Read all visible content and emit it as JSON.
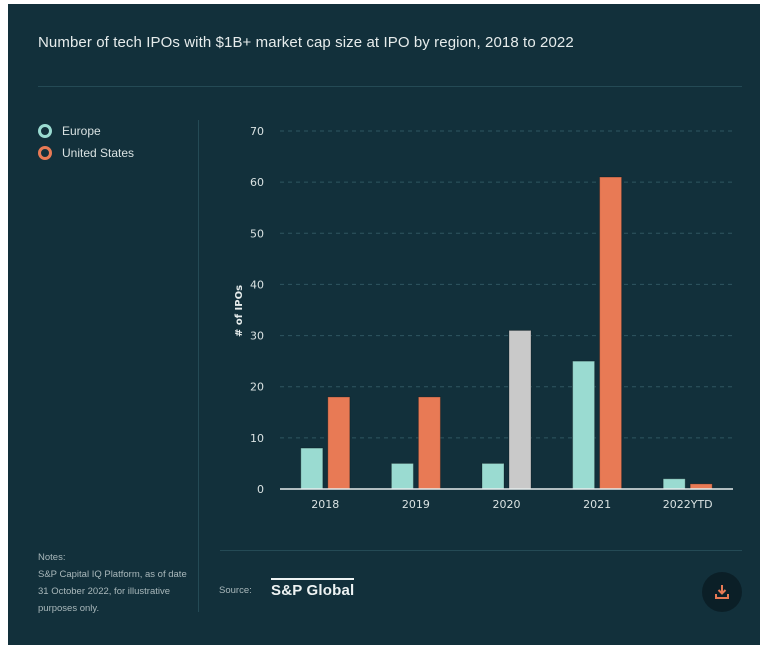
{
  "title": "Number of tech IPOs with $1B+ market cap size at IPO by region, 2018 to 2022",
  "legend": [
    {
      "label": "Europe",
      "color": "#9adbd1"
    },
    {
      "label": "United States",
      "color": "#e87a55"
    }
  ],
  "notes": {
    "heading": "Notes:",
    "text": "S&P Capital IQ Platform, as of date 31 October 2022, for illustrative purposes only."
  },
  "source": {
    "label": "Source:",
    "brand": "S&P Global"
  },
  "download": {
    "icon": "download-icon"
  },
  "colors": {
    "background": "#12303b",
    "europe": "#9adbd1",
    "us": "#e87a55",
    "highlight": "#c9c9c9"
  },
  "chart_data": {
    "type": "bar",
    "title": "Number of tech IPOs with $1B+ market cap size at IPO by region, 2018 to 2022",
    "xlabel": "",
    "ylabel": "# of IPOs",
    "ylim": [
      0,
      70
    ],
    "yticks": [
      0,
      10,
      20,
      30,
      40,
      50,
      60,
      70
    ],
    "grid": true,
    "legend_position": "top-left",
    "categories": [
      "2018",
      "2019",
      "2020",
      "2021",
      "2022YTD"
    ],
    "series": [
      {
        "name": "Europe",
        "values": [
          8,
          5,
          5,
          25,
          2
        ]
      },
      {
        "name": "United States",
        "values": [
          18,
          18,
          31,
          61,
          1
        ]
      }
    ],
    "highlighted": {
      "series": "United States",
      "category": "2020",
      "color": "#c9c9c9"
    }
  }
}
